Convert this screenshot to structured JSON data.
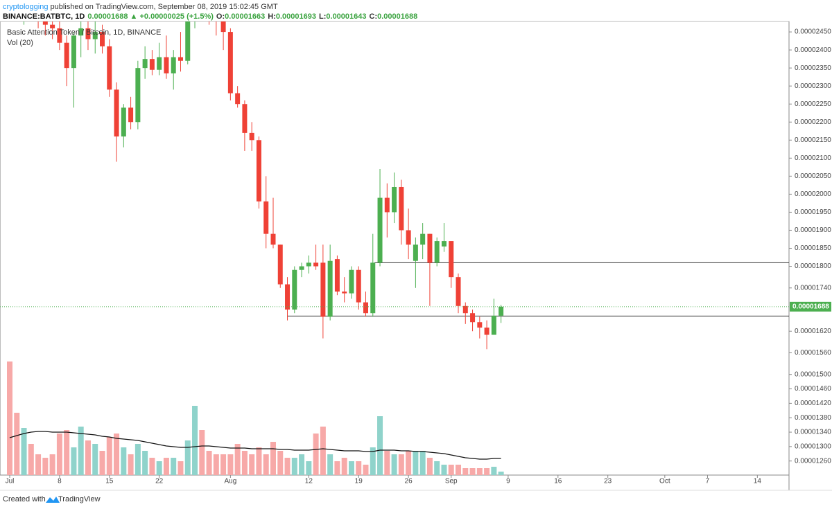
{
  "header": {
    "user": "cryptologging",
    "published": " published on TradingView.com, September 08, 2019 15:02:45 GMT",
    "symbol": "BINANCE:BATBTC, 1D",
    "change": "0.00001688 ▲ +0.00000025 (+1.5%)",
    "quote": [
      {
        "key": "O:",
        "value": "0.00001663"
      },
      {
        "key": "H:",
        "value": "0.00001693"
      },
      {
        "key": "L:",
        "value": "0.00001643"
      },
      {
        "key": "C:",
        "value": "0.00001688"
      }
    ]
  },
  "chart_data": {
    "type": "candlestick",
    "title": "Basic Attention Token / Bitcoin, 1D, BINANCE",
    "volume_label": "Vol (20)",
    "categories": [
      "Jul",
      null,
      null,
      null,
      null,
      null,
      null,
      "8",
      null,
      null,
      null,
      null,
      null,
      null,
      "15",
      null,
      null,
      null,
      null,
      null,
      null,
      "22",
      null,
      null,
      null,
      null,
      null,
      null,
      null,
      null,
      null,
      "Aug",
      null,
      null,
      null,
      null,
      null,
      null,
      null,
      null,
      null,
      null,
      "12",
      null,
      null,
      null,
      null,
      null,
      null,
      "19",
      null,
      null,
      null,
      null,
      null,
      null,
      "26",
      null,
      null,
      null,
      null,
      null,
      "Sep",
      null,
      null,
      null,
      null,
      null,
      null,
      null,
      "9",
      null,
      null,
      null,
      null,
      null,
      null,
      "16",
      null,
      null,
      null,
      null,
      null,
      null,
      "23",
      null,
      null,
      null,
      null,
      null,
      null,
      null,
      "Oct",
      null,
      null,
      null,
      null,
      null,
      "7",
      null,
      null,
      null,
      null,
      null,
      null,
      "14",
      null,
      null,
      null,
      null
    ],
    "open": [
      2.56e-05,
      2.53e-05,
      2.51e-05,
      2.54e-05,
      2.5e-05,
      2.48e-05,
      2.47e-05,
      2.46e-05,
      2.42e-05,
      2.35e-05,
      2.44e-05,
      2.46e-05,
      2.43e-05,
      2.45e-05,
      2.41e-05,
      2.29e-05,
      2.16e-05,
      2.24e-05,
      2.2e-05,
      2.35e-05,
      2.375e-05,
      2.345e-05,
      2.38e-05,
      2.335e-05,
      2.38e-05,
      2.37e-05,
      2.49e-05,
      2.54e-05,
      2.52e-05,
      2.5e-05,
      2.48e-05,
      2.45e-05,
      2.28e-05,
      2.25e-05,
      2.17e-05,
      2.15e-05,
      1.98e-05,
      1.89e-05,
      1.86e-05,
      1.75e-05,
      1.68e-05,
      1.79e-05,
      1.8e-05,
      1.81e-05,
      1.81e-05,
      1.66e-05,
      1.82e-05,
      1.73e-05,
      1.725e-05,
      1.79e-05,
      1.7e-05,
      1.67e-05,
      1.81e-05,
      1.99e-05,
      1.95e-05,
      2.02e-05,
      1.9e-05,
      1.815e-05,
      1.86e-05,
      1.89e-05,
      1.81e-05,
      1.855e-05,
      1.87e-05,
      1.77e-05,
      1.69e-05,
      1.67e-05,
      1.645e-05,
      1.63e-05,
      1.61e-05,
      1.663e-05,
      null,
      null,
      null,
      null,
      null,
      null,
      null,
      null,
      null,
      null,
      null,
      null,
      null,
      null,
      null,
      null,
      null,
      null,
      null,
      null,
      null,
      null,
      null,
      null,
      null,
      null,
      null,
      null,
      null,
      null,
      null,
      null,
      null,
      null,
      null,
      null,
      null,
      null,
      null,
      null
    ],
    "high": [
      2.62e-05,
      2.58e-05,
      2.57e-05,
      2.6e-05,
      2.56e-05,
      2.53e-05,
      2.52e-05,
      2.49e-05,
      2.44e-05,
      2.45e-05,
      2.48e-05,
      2.49e-05,
      2.48e-05,
      2.47e-05,
      2.43e-05,
      2.31e-05,
      2.25e-05,
      2.27e-05,
      2.37e-05,
      2.41e-05,
      2.4e-05,
      2.42e-05,
      2.44e-05,
      2.4e-05,
      2.45e-05,
      2.51e-05,
      2.56e-05,
      2.59e-05,
      2.56e-05,
      2.54e-05,
      2.5e-05,
      2.46e-05,
      2.3e-05,
      2.26e-05,
      2.2e-05,
      2.16e-05,
      2.05e-05,
      1.99e-05,
      1.86e-05,
      1.77e-05,
      1.8e-05,
      1.81e-05,
      1.83e-05,
      1.86e-05,
      1.86e-05,
      1.86e-05,
      1.83e-05,
      1.77e-05,
      1.8e-05,
      1.8e-05,
      1.73e-05,
      1.89e-05,
      2.07e-05,
      2.03e-05,
      2.06e-05,
      2.04e-05,
      1.96e-05,
      1.88e-05,
      1.92e-05,
      1.89e-05,
      1.88e-05,
      1.92e-05,
      1.87e-05,
      1.78e-05,
      1.7e-05,
      1.68e-05,
      1.66e-05,
      1.65e-05,
      1.71e-05,
      1.693e-05,
      null,
      null,
      null,
      null,
      null,
      null,
      null,
      null,
      null,
      null,
      null,
      null,
      null,
      null,
      null,
      null,
      null,
      null,
      null,
      null,
      null,
      null,
      null,
      null,
      null,
      null,
      null,
      null,
      null,
      null,
      null,
      null,
      null,
      null,
      null,
      null,
      null,
      null,
      null,
      null
    ],
    "low": [
      2.5e-05,
      2.48e-05,
      2.47e-05,
      2.49e-05,
      2.46e-05,
      2.44e-05,
      2.43e-05,
      2.4e-05,
      2.3e-05,
      2.24e-05,
      2.38e-05,
      2.4e-05,
      2.39e-05,
      2.39e-05,
      2.27e-05,
      2.09e-05,
      2.13e-05,
      2.18e-05,
      2.18e-05,
      2.32e-05,
      2.33e-05,
      2.33e-05,
      2.32e-05,
      2.29e-05,
      2.34e-05,
      2.36e-05,
      2.46e-05,
      2.49e-05,
      2.47e-05,
      2.44e-05,
      2.4e-05,
      2.26e-05,
      2.24e-05,
      2.12e-05,
      2.12e-05,
      1.96e-05,
      1.85e-05,
      1.85e-05,
      1.74e-05,
      1.65e-05,
      1.67e-05,
      1.77e-05,
      1.78e-05,
      1.79e-05,
      1.6e-05,
      1.65e-05,
      1.72e-05,
      1.7e-05,
      1.71e-05,
      1.68e-05,
      1.66e-05,
      1.66e-05,
      1.8e-05,
      1.88e-05,
      1.92e-05,
      1.86e-05,
      1.82e-05,
      1.74e-05,
      1.82e-05,
      1.69e-05,
      1.8e-05,
      1.84e-05,
      1.74e-05,
      1.67e-05,
      1.64e-05,
      1.62e-05,
      1.6e-05,
      1.57e-05,
      1.61e-05,
      1.643e-05,
      null,
      null,
      null,
      null,
      null,
      null,
      null,
      null,
      null,
      null,
      null,
      null,
      null,
      null,
      null,
      null,
      null,
      null,
      null,
      null,
      null,
      null,
      null,
      null,
      null,
      null,
      null,
      null,
      null,
      null,
      null,
      null,
      null,
      null,
      null,
      null,
      null,
      null,
      null,
      null
    ],
    "close": [
      2.53e-05,
      2.51e-05,
      2.54e-05,
      2.5e-05,
      2.48e-05,
      2.47e-05,
      2.46e-05,
      2.42e-05,
      2.35e-05,
      2.44e-05,
      2.46e-05,
      2.43e-05,
      2.45e-05,
      2.41e-05,
      2.29e-05,
      2.16e-05,
      2.24e-05,
      2.2e-05,
      2.35e-05,
      2.375e-05,
      2.345e-05,
      2.38e-05,
      2.335e-05,
      2.38e-05,
      2.37e-05,
      2.49e-05,
      2.54e-05,
      2.52e-05,
      2.5e-05,
      2.48e-05,
      2.45e-05,
      2.28e-05,
      2.25e-05,
      2.17e-05,
      2.15e-05,
      1.98e-05,
      1.89e-05,
      1.86e-05,
      1.75e-05,
      1.68e-05,
      1.79e-05,
      1.8e-05,
      1.81e-05,
      1.8e-05,
      1.66e-05,
      1.815e-05,
      1.73e-05,
      1.725e-05,
      1.79e-05,
      1.7e-05,
      1.67e-05,
      1.81e-05,
      1.99e-05,
      1.95e-05,
      2.02e-05,
      1.9e-05,
      1.86e-05,
      1.86e-05,
      1.89e-05,
      1.81e-05,
      1.87e-05,
      1.87e-05,
      1.77e-05,
      1.69e-05,
      1.67e-05,
      1.645e-05,
      1.63e-05,
      1.61e-05,
      1.663e-05,
      1.688e-05,
      null,
      null,
      null,
      null,
      null,
      null,
      null,
      null,
      null,
      null,
      null,
      null,
      null,
      null,
      null,
      null,
      null,
      null,
      null,
      null,
      null,
      null,
      null,
      null,
      null,
      null,
      null,
      null,
      null,
      null,
      null,
      null,
      null,
      null,
      null,
      null,
      null,
      null,
      null,
      null
    ],
    "volume": [
      164,
      90,
      68,
      45,
      30,
      25,
      30,
      60,
      65,
      40,
      70,
      50,
      45,
      35,
      55,
      60,
      40,
      30,
      45,
      35,
      25,
      20,
      25,
      25,
      20,
      50,
      100,
      65,
      35,
      30,
      30,
      30,
      45,
      35,
      30,
      40,
      30,
      48,
      35,
      25,
      25,
      30,
      20,
      60,
      70,
      30,
      20,
      25,
      20,
      20,
      15,
      40,
      85,
      35,
      30,
      30,
      35,
      35,
      35,
      25,
      20,
      15,
      15,
      15,
      10,
      10,
      10,
      10,
      12,
      5,
      null,
      null,
      null,
      null,
      null,
      null,
      null,
      null,
      null,
      null,
      null,
      null,
      null,
      null,
      null,
      null,
      null,
      null,
      null,
      null,
      null,
      null,
      null,
      null,
      null,
      null,
      null,
      null,
      null,
      null,
      null,
      null,
      null,
      null,
      null,
      null,
      null,
      null,
      null,
      null
    ],
    "volume_ma": [
      54,
      57,
      60,
      62,
      63,
      63,
      62,
      62,
      62,
      61,
      60,
      59,
      58,
      56,
      55,
      53,
      52,
      51,
      50,
      48,
      46,
      44,
      42,
      41,
      40,
      40,
      41,
      42,
      42,
      41,
      40,
      39,
      39,
      39,
      38,
      38,
      38,
      38,
      37,
      37,
      36,
      36,
      36,
      37,
      38,
      37,
      36,
      35,
      35,
      35,
      34,
      34,
      36,
      36,
      36,
      35,
      35,
      34,
      34,
      33,
      32,
      31,
      29,
      27,
      25,
      24,
      23,
      23,
      24,
      24,
      null,
      null,
      null,
      null,
      null,
      null,
      null,
      null,
      null,
      null,
      null,
      null,
      null,
      null,
      null,
      null,
      null,
      null,
      null,
      null,
      null,
      null,
      null,
      null,
      null,
      null,
      null,
      null,
      null,
      null,
      null,
      null,
      null,
      null,
      null,
      null,
      null,
      null,
      null,
      null
    ],
    "up_color": "#4caf50",
    "down_color": "#ef4136",
    "volume_up_color": "#8fd3cb",
    "volume_down_color": "#f7a9a8",
    "ma_color": "#111111",
    "level_color": "#333333",
    "levels": [
      1.81e-05,
      1.662e-05
    ],
    "last_label": "0.00001688",
    "ylim": [
      1.221e-05,
      2.479e-05
    ],
    "yticks": [
      {
        "value": 2.45e-05,
        "label": "0.00002450"
      },
      {
        "value": 2.4e-05,
        "label": "0.00002400"
      },
      {
        "value": 2.35e-05,
        "label": "0.00002350"
      },
      {
        "value": 2.3e-05,
        "label": "0.00002300"
      },
      {
        "value": 2.25e-05,
        "label": "0.00002250"
      },
      {
        "value": 2.2e-05,
        "label": "0.00002200"
      },
      {
        "value": 2.15e-05,
        "label": "0.00002150"
      },
      {
        "value": 2.1e-05,
        "label": "0.00002100"
      },
      {
        "value": 2.05e-05,
        "label": "0.00002050"
      },
      {
        "value": 2e-05,
        "label": "0.00002000"
      },
      {
        "value": 1.95e-05,
        "label": "0.00001950"
      },
      {
        "value": 1.9e-05,
        "label": "0.00001900"
      },
      {
        "value": 1.85e-05,
        "label": "0.00001850"
      },
      {
        "value": 1.8e-05,
        "label": "0.00001800"
      },
      {
        "value": 1.74e-05,
        "label": "0.00001740"
      },
      {
        "value": 1.62e-05,
        "label": "0.00001620"
      },
      {
        "value": 1.56e-05,
        "label": "0.00001560"
      },
      {
        "value": 1.5e-05,
        "label": "0.00001500"
      },
      {
        "value": 1.46e-05,
        "label": "0.00001460"
      },
      {
        "value": 1.42e-05,
        "label": "0.00001420"
      },
      {
        "value": 1.38e-05,
        "label": "0.00001380"
      },
      {
        "value": 1.34e-05,
        "label": "0.00001340"
      },
      {
        "value": 1.3e-05,
        "label": "0.00001300"
      },
      {
        "value": 1.26e-05,
        "label": "0.00001260"
      }
    ]
  },
  "footer": {
    "prefix": "Created with",
    "brand": "TradingView"
  }
}
